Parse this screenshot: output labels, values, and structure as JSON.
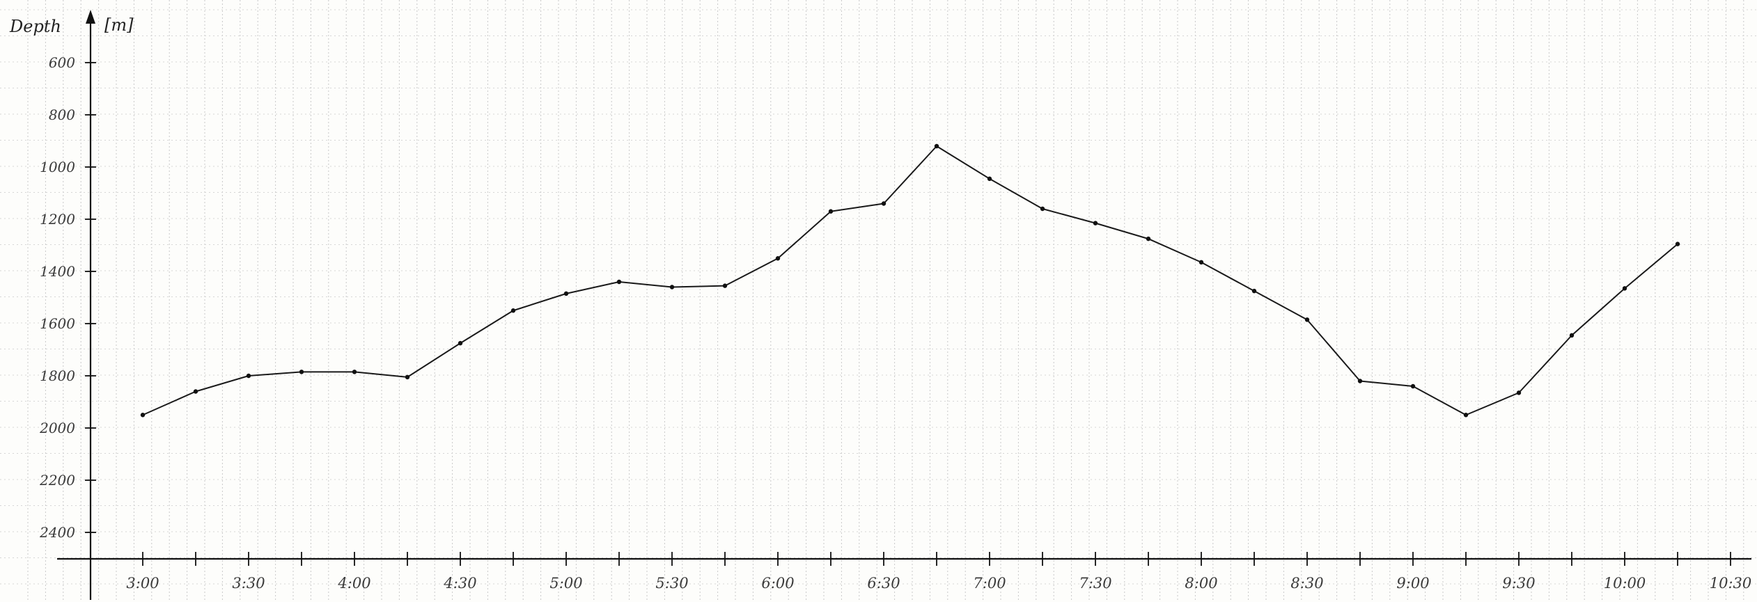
{
  "chart_data": {
    "type": "line",
    "title": "",
    "xlabel": "",
    "ylabel": "Depth",
    "yunit": "[m]",
    "x_tick_labels": [
      "3:00",
      "3:30",
      "4:00",
      "4:30",
      "5:00",
      "5:30",
      "6:00",
      "6:30",
      "7:00",
      "7:30",
      "8:00",
      "8:30",
      "9:00",
      "9:30",
      "10:00",
      "10:30"
    ],
    "y_tick_labels": [
      "600",
      "800",
      "1000",
      "1200",
      "1400",
      "1600",
      "1800",
      "2000",
      "2200",
      "2400"
    ],
    "y_inverted": true,
    "ylim": [
      2600,
      600
    ],
    "xlim": [
      "2:45",
      "10:30"
    ],
    "grid": true,
    "x_interval_minutes": 15,
    "series": [
      {
        "x": [
          "3:00",
          "3:15",
          "3:30",
          "3:45",
          "4:00",
          "4:15",
          "4:30",
          "4:45",
          "5:00",
          "5:15",
          "5:30",
          "5:45",
          "6:00",
          "6:15",
          "6:30",
          "6:45",
          "7:00",
          "7:15",
          "7:30",
          "7:45",
          "8:00",
          "8:15",
          "8:30",
          "8:45",
          "9:00",
          "9:15",
          "9:30",
          "9:45",
          "10:00",
          "10:15"
        ],
        "values": [
          1950,
          1860,
          1800,
          1785,
          1785,
          1805,
          1675,
          1550,
          1485,
          1440,
          1460,
          1455,
          1350,
          1170,
          1140,
          920,
          1045,
          1160,
          1215,
          1275,
          1365,
          1475,
          1585,
          1820,
          1840,
          1950,
          1865,
          1645,
          1465,
          1295
        ]
      }
    ]
  }
}
